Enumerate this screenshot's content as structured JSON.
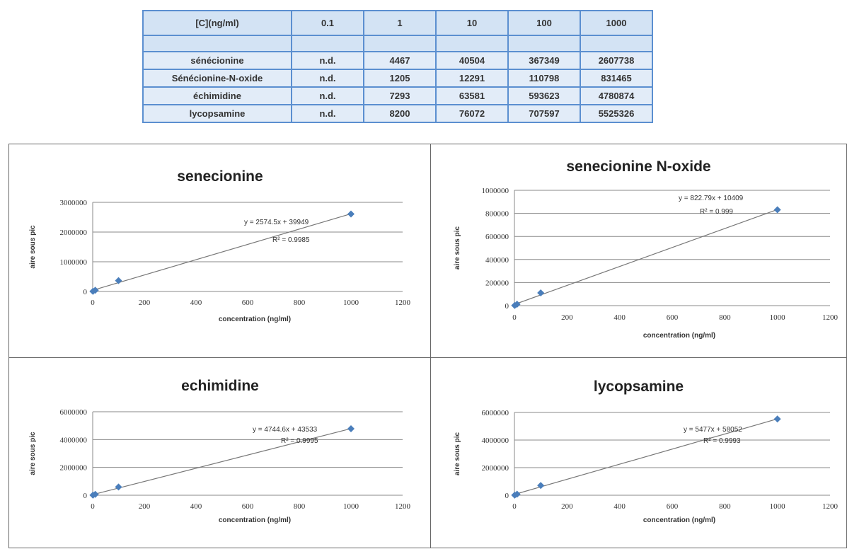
{
  "table": {
    "header": [
      "[C](ng/ml)",
      "0.1",
      "1",
      "10",
      "100",
      "1000"
    ],
    "rows": [
      {
        "name": "sénécionine",
        "values": [
          "n.d.",
          "4467",
          "40504",
          "367349",
          "2607738"
        ]
      },
      {
        "name": "Sénécionine-N-oxide",
        "values": [
          "n.d.",
          "1205",
          "12291",
          "110798",
          "831465"
        ]
      },
      {
        "name": "échimidine",
        "values": [
          "n.d.",
          "7293",
          "63581",
          "593623",
          "4780874"
        ]
      },
      {
        "name": "lycopsamine",
        "values": [
          "n.d.",
          "8200",
          "76072",
          "707597",
          "5525326"
        ]
      }
    ]
  },
  "chart_data": [
    {
      "type": "scatter",
      "title": "senecionine",
      "xlabel": "concentration (ng/ml)",
      "ylabel": "aire sous pic",
      "xlim": [
        0,
        1200
      ],
      "ylim": [
        0,
        3000000
      ],
      "xticks": [
        0,
        200,
        400,
        600,
        800,
        1000,
        1200
      ],
      "yticks": [
        0,
        1000000,
        2000000,
        3000000
      ],
      "grid": true,
      "x": [
        1,
        10,
        100,
        1000
      ],
      "y": [
        4467,
        40504,
        367349,
        2607738
      ],
      "trendline": {
        "slope": 2574.5,
        "intercept": 39949
      },
      "equation": "y = 2574.5x + 39949",
      "r2": "R² = 0.9985"
    },
    {
      "type": "scatter",
      "title": "senecionine N-oxide",
      "xlabel": "concentration (ng/ml)",
      "ylabel": "aire sous pic",
      "xlim": [
        0,
        1200
      ],
      "ylim": [
        0,
        1000000
      ],
      "xticks": [
        0,
        200,
        400,
        600,
        800,
        1000,
        1200
      ],
      "yticks": [
        0,
        200000,
        400000,
        600000,
        800000,
        1000000
      ],
      "grid": true,
      "x": [
        1,
        10,
        100,
        1000
      ],
      "y": [
        1205,
        12291,
        110798,
        831465
      ],
      "trendline": {
        "slope": 822.79,
        "intercept": 10409
      },
      "equation": "y = 822.79x + 10409",
      "r2": "R² = 0.999"
    },
    {
      "type": "scatter",
      "title": "echimidine",
      "xlabel": "concentration (ng/ml)",
      "ylabel": "aire sous pic",
      "xlim": [
        0,
        1200
      ],
      "ylim": [
        0,
        6000000
      ],
      "xticks": [
        0,
        200,
        400,
        600,
        800,
        1000,
        1200
      ],
      "yticks": [
        0,
        2000000,
        4000000,
        6000000
      ],
      "grid": true,
      "x": [
        1,
        10,
        100,
        1000
      ],
      "y": [
        7293,
        63581,
        593623,
        4780874
      ],
      "trendline": {
        "slope": 4744.6,
        "intercept": 43533
      },
      "equation": "y = 4744.6x + 43533",
      "r2": "R² = 0.9995"
    },
    {
      "type": "scatter",
      "title": "lycopsamine",
      "xlabel": "concentration (ng/ml)",
      "ylabel": "aire sous pic",
      "xlim": [
        0,
        1200
      ],
      "ylim": [
        0,
        6000000
      ],
      "xticks": [
        0,
        200,
        400,
        600,
        800,
        1000,
        1200
      ],
      "yticks": [
        0,
        2000000,
        4000000,
        6000000
      ],
      "grid": true,
      "x": [
        1,
        10,
        100,
        1000
      ],
      "y": [
        8200,
        76072,
        707597,
        5525326
      ],
      "trendline": {
        "slope": 5477,
        "intercept": 58052
      },
      "equation": "y = 5477x + 58052",
      "r2": "R² = 0.9993"
    }
  ],
  "colors": {
    "marker": "#4a7ebb",
    "trendline": "#777777",
    "grid": "#8a8a8a",
    "table_border": "#5b8fd0",
    "table_fill": "#dce8f6"
  }
}
